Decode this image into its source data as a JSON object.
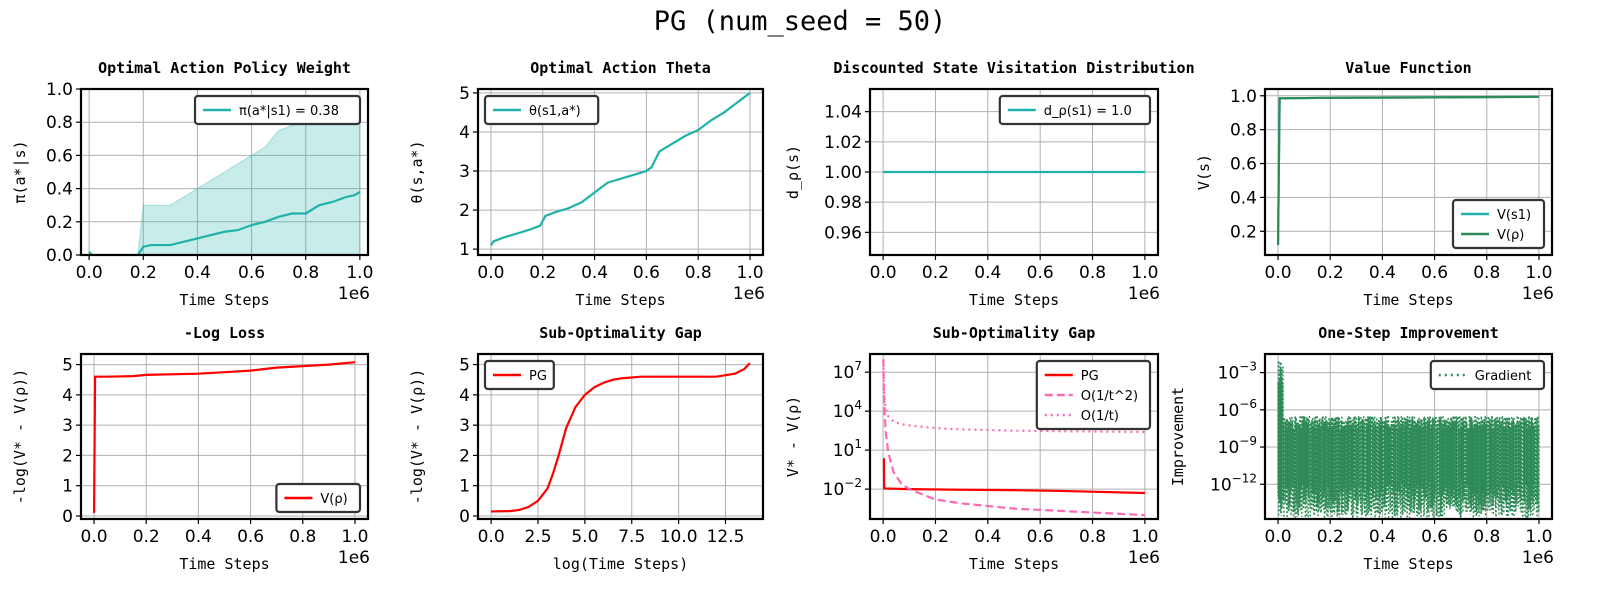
{
  "suptitle": "PG (num_seed = 50)",
  "colors": {
    "teal": "#20b2aa",
    "red": "#ff0000",
    "green": "#2e8b57",
    "pink": "#ff69b4",
    "grid": "#b0b0b0"
  },
  "chart_data": [
    {
      "type": "line",
      "title": "Optimal Action Policy Weight",
      "xlabel": "Time Steps",
      "ylabel": "π(a*|s)",
      "xlim": [
        -0.03,
        1.03
      ],
      "ylim": [
        0,
        1.0
      ],
      "xticks": [
        0,
        0.2,
        0.4,
        0.6,
        0.8,
        1.0
      ],
      "xtick_labels": [
        "0.0",
        "0.2",
        "0.4",
        "0.6",
        "0.8",
        "1.0"
      ],
      "yticks": [
        0,
        0.2,
        0.4,
        0.6,
        0.8,
        1.0
      ],
      "ytick_labels": [
        "0.0",
        "0.2",
        "0.4",
        "0.6",
        "0.8",
        "1.0"
      ],
      "offset_label": "1e6",
      "grid": true,
      "legend_loc": "upper right",
      "series": [
        {
          "name": "π(a*|s1) = 0.38",
          "color": "#20b2aa",
          "x": [
            0,
            0.01,
            0.18,
            0.2,
            0.23,
            0.3,
            0.35,
            0.4,
            0.45,
            0.5,
            0.55,
            0.6,
            0.65,
            0.7,
            0.75,
            0.8,
            0.85,
            0.9,
            0.95,
            0.98,
            1.0
          ],
          "y": [
            0.02,
            0.0,
            0.0,
            0.05,
            0.06,
            0.06,
            0.08,
            0.1,
            0.12,
            0.14,
            0.15,
            0.18,
            0.2,
            0.23,
            0.25,
            0.25,
            0.3,
            0.32,
            0.35,
            0.36,
            0.38
          ]
        }
      ],
      "bands": [
        {
          "color": "#20b2aa",
          "x": [
            0,
            0.01,
            0.18,
            0.2,
            0.3,
            0.35,
            0.4,
            0.45,
            0.5,
            0.55,
            0.6,
            0.65,
            0.7,
            0.75,
            0.8,
            0.9,
            1.0
          ],
          "lower": [
            0,
            0,
            0,
            0,
            0,
            0,
            0,
            0,
            0,
            0,
            0,
            0,
            0,
            0,
            0,
            0,
            0
          ],
          "upper": [
            0.02,
            0.0,
            0.0,
            0.3,
            0.3,
            0.35,
            0.4,
            0.45,
            0.5,
            0.55,
            0.6,
            0.65,
            0.75,
            0.78,
            0.8,
            0.82,
            0.82
          ]
        }
      ]
    },
    {
      "type": "line",
      "title": "Optimal Action Theta",
      "xlabel": "Time Steps",
      "ylabel": "θ(s,a*)",
      "xlim": [
        -0.05,
        1.05
      ],
      "ylim": [
        0.85,
        5.1
      ],
      "xticks": [
        0,
        0.2,
        0.4,
        0.6,
        0.8,
        1.0
      ],
      "xtick_labels": [
        "0.0",
        "0.2",
        "0.4",
        "0.6",
        "0.8",
        "1.0"
      ],
      "yticks": [
        1,
        2,
        3,
        4,
        5
      ],
      "ytick_labels": [
        "1",
        "2",
        "3",
        "4",
        "5"
      ],
      "offset_label": "1e6",
      "grid": true,
      "legend_loc": "upper left",
      "series": [
        {
          "name": "θ(s1,a*)",
          "color": "#20b2aa",
          "x": [
            0,
            0.01,
            0.05,
            0.1,
            0.15,
            0.19,
            0.21,
            0.25,
            0.3,
            0.35,
            0.4,
            0.45,
            0.5,
            0.55,
            0.6,
            0.62,
            0.65,
            0.7,
            0.75,
            0.8,
            0.85,
            0.9,
            0.95,
            1.0
          ],
          "y": [
            1.1,
            1.2,
            1.3,
            1.4,
            1.5,
            1.6,
            1.85,
            1.95,
            2.05,
            2.2,
            2.45,
            2.7,
            2.8,
            2.9,
            3.0,
            3.1,
            3.5,
            3.7,
            3.9,
            4.05,
            4.3,
            4.5,
            4.75,
            5.0
          ]
        }
      ]
    },
    {
      "type": "line",
      "title": "Discounted State Visitation Distribution",
      "xlabel": "Time Steps",
      "ylabel": "d_ρ(s)",
      "xlim": [
        -0.05,
        1.05
      ],
      "ylim": [
        0.945,
        1.055
      ],
      "xticks": [
        0,
        0.2,
        0.4,
        0.6,
        0.8,
        1.0
      ],
      "xtick_labels": [
        "0.0",
        "0.2",
        "0.4",
        "0.6",
        "0.8",
        "1.0"
      ],
      "yticks": [
        0.96,
        0.98,
        1.0,
        1.02,
        1.04
      ],
      "ytick_labels": [
        "0.96",
        "0.98",
        "1.00",
        "1.02",
        "1.04"
      ],
      "offset_label": "1e6",
      "grid": true,
      "legend_loc": "upper right",
      "series": [
        {
          "name": "d_ρ(s1) = 1.0",
          "color": "#20b2aa",
          "x": [
            0,
            1.0
          ],
          "y": [
            1.0,
            1.0
          ]
        }
      ]
    },
    {
      "type": "line",
      "title": "Value Function",
      "xlabel": "Time Steps",
      "ylabel": "V(s)",
      "xlim": [
        -0.05,
        1.05
      ],
      "ylim": [
        0.06,
        1.04
      ],
      "xticks": [
        0,
        0.2,
        0.4,
        0.6,
        0.8,
        1.0
      ],
      "xtick_labels": [
        "0.0",
        "0.2",
        "0.4",
        "0.6",
        "0.8",
        "1.0"
      ],
      "yticks": [
        0.2,
        0.4,
        0.6,
        0.8,
        1.0
      ],
      "ytick_labels": [
        "0.2",
        "0.4",
        "0.6",
        "0.8",
        "1.0"
      ],
      "offset_label": "1e6",
      "grid": true,
      "legend_loc": "lower right",
      "series": [
        {
          "name": "V(s1)",
          "color": "#20b2aa",
          "x": [
            0,
            0.006,
            0.2,
            0.5,
            1.0
          ],
          "y": [
            0.12,
            0.985,
            0.988,
            0.99,
            0.994
          ]
        },
        {
          "name": "V(ρ)",
          "color": "#2e8b57",
          "x": [
            0,
            0.006,
            0.2,
            0.5,
            1.0
          ],
          "y": [
            0.12,
            0.985,
            0.988,
            0.99,
            0.994
          ]
        }
      ]
    },
    {
      "type": "line",
      "title": "-Log Loss",
      "xlabel": "Time Steps",
      "ylabel": "-log(V* - V(ρ))",
      "xlim": [
        -0.05,
        1.05
      ],
      "ylim": [
        -0.1,
        5.35
      ],
      "xticks": [
        0,
        0.2,
        0.4,
        0.6,
        0.8,
        1.0
      ],
      "xtick_labels": [
        "0.0",
        "0.2",
        "0.4",
        "0.6",
        "0.8",
        "1.0"
      ],
      "yticks": [
        0,
        1,
        2,
        3,
        4,
        5
      ],
      "ytick_labels": [
        "0",
        "1",
        "2",
        "3",
        "4",
        "5"
      ],
      "offset_label": "1e6",
      "grid": true,
      "legend_loc": "lower right",
      "series": [
        {
          "name": "V(ρ)",
          "color": "#ff0000",
          "x": [
            0,
            0.004,
            0.05,
            0.15,
            0.2,
            0.4,
            0.5,
            0.6,
            0.65,
            0.7,
            0.8,
            0.9,
            1.0
          ],
          "y": [
            0.1,
            4.6,
            4.6,
            4.62,
            4.66,
            4.7,
            4.75,
            4.8,
            4.85,
            4.9,
            4.95,
            5.0,
            5.08
          ]
        }
      ]
    },
    {
      "type": "line",
      "title": "Sub-Optimality Gap",
      "xlabel": "log(Time Steps)",
      "ylabel": "-log(V* - V(ρ))",
      "xlim": [
        -0.7,
        14.5
      ],
      "ylim": [
        -0.1,
        5.35
      ],
      "xticks": [
        0,
        2.5,
        5,
        7.5,
        10,
        12.5
      ],
      "xtick_labels": [
        "0.0",
        "2.5",
        "5.0",
        "7.5",
        "10.0",
        "12.5"
      ],
      "yticks": [
        0,
        1,
        2,
        3,
        4,
        5
      ],
      "ytick_labels": [
        "0",
        "1",
        "2",
        "3",
        "4",
        "5"
      ],
      "offset_label": "",
      "grid": true,
      "legend_loc": "upper left",
      "series": [
        {
          "name": "PG",
          "color": "#ff0000",
          "x": [
            0,
            1,
            1.5,
            2,
            2.5,
            3,
            3.3,
            3.6,
            4,
            4.5,
            5,
            5.5,
            6,
            6.5,
            7,
            8,
            9,
            10,
            11,
            12,
            12.5,
            13,
            13.5,
            13.8
          ],
          "y": [
            0.15,
            0.16,
            0.2,
            0.3,
            0.5,
            0.9,
            1.4,
            2.0,
            2.9,
            3.6,
            4.0,
            4.25,
            4.4,
            4.5,
            4.55,
            4.6,
            4.6,
            4.6,
            4.6,
            4.6,
            4.65,
            4.7,
            4.85,
            5.05
          ]
        }
      ]
    },
    {
      "type": "line",
      "title": "Sub-Optimality Gap",
      "xlabel": "Time Steps",
      "ylabel": "V* - V(ρ)",
      "xlim": [
        -0.05,
        1.05
      ],
      "ylim": [
        -4.3,
        8.4
      ],
      "yscale": "log",
      "xticks": [
        0,
        0.2,
        0.4,
        0.6,
        0.8,
        1.0
      ],
      "xtick_labels": [
        "0.0",
        "0.2",
        "0.4",
        "0.6",
        "0.8",
        "1.0"
      ],
      "yticks": [
        -2,
        1,
        4,
        7
      ],
      "ytick_labels": [
        "10^-2",
        "10^1",
        "10^4",
        "10^7"
      ],
      "offset_label": "1e6",
      "grid": true,
      "legend_loc": "upper right",
      "series": [
        {
          "name": "PG",
          "color": "#ff0000",
          "dash": "solid",
          "x": [
            0,
            0.003,
            0.004,
            0.1,
            0.3,
            0.5,
            0.7,
            1.0
          ],
          "y": [
            0.3,
            0.3,
            -1.95,
            -2.0,
            -2.05,
            -2.08,
            -2.15,
            -2.3
          ]
        },
        {
          "name": "O(1/t^2)",
          "color": "#ff69b4",
          "dash": "dashed",
          "x": [
            0.001,
            0.003,
            0.006,
            0.01,
            0.02,
            0.04,
            0.07,
            0.1,
            0.2,
            0.3,
            0.5,
            0.7,
            1.0
          ],
          "y": [
            8.0,
            5.5,
            3.8,
            2.4,
            0.8,
            -0.7,
            -1.6,
            -2.0,
            -2.8,
            -3.1,
            -3.5,
            -3.7,
            -4.0
          ]
        },
        {
          "name": "O(1/t)",
          "color": "#ff69b4",
          "dash": "dotted",
          "x": [
            0.001,
            0.003,
            0.006,
            0.01,
            0.02,
            0.04,
            0.07,
            0.1,
            0.2,
            0.3,
            0.5,
            0.7,
            1.0
          ],
          "y": [
            7.8,
            6.0,
            4.9,
            4.2,
            3.6,
            3.2,
            3.0,
            2.9,
            2.7,
            2.6,
            2.5,
            2.45,
            2.4
          ]
        }
      ]
    },
    {
      "type": "line",
      "title": "One-Step Improvement",
      "xlabel": "Time Steps",
      "ylabel": "Improvement",
      "xlim": [
        -0.05,
        1.05
      ],
      "ylim": [
        -14.8,
        -1.5
      ],
      "yscale": "log",
      "xticks": [
        0,
        0.2,
        0.4,
        0.6,
        0.8,
        1.0
      ],
      "xtick_labels": [
        "0.0",
        "0.2",
        "0.4",
        "0.6",
        "0.8",
        "1.0"
      ],
      "yticks": [
        -12,
        -9,
        -6,
        -3
      ],
      "ytick_labels": [
        "10^-12",
        "10^-9",
        "10^-6",
        "10^-3"
      ],
      "offset_label": "1e6",
      "grid": true,
      "legend_loc": "upper right",
      "series": [
        {
          "name": "Gradient",
          "color": "#2e8b57",
          "dash": "dotted",
          "style": "noise",
          "x_range": [
            0,
            1.0
          ],
          "y_range": [
            -14.8,
            -6.5
          ],
          "peak": -2.0,
          "envelope_top": -6.5
        }
      ]
    }
  ]
}
